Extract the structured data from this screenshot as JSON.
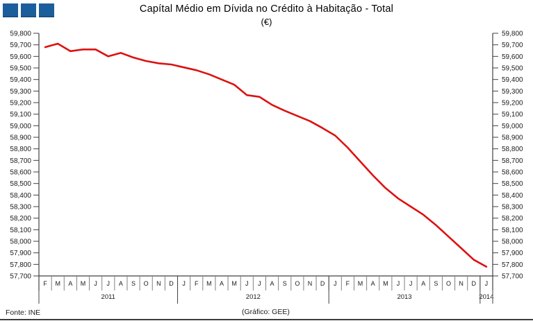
{
  "header": {
    "title": "Capítal Médio em Dívida no Crédito à Habitação - Total",
    "subtitle": "(€)"
  },
  "logo": {
    "squares": 3,
    "color": "#1b5e9b"
  },
  "footer": {
    "source": "Fonte: INE",
    "credit": "(Gráfico:  GEE)"
  },
  "chart_data": {
    "type": "line",
    "title": "Capítal Médio em Dívida no Crédito à Habitação - Total",
    "unit": "€",
    "grid": false,
    "legend": "none",
    "line_color": "#dd1111",
    "axis_color": "#404040",
    "cell_line_color": "#808080",
    "y": {
      "min": 57700,
      "max": 59800,
      "step": 100
    },
    "x": {
      "months": [
        "F",
        "M",
        "A",
        "M",
        "J",
        "J",
        "A",
        "S",
        "O",
        "N",
        "D",
        "J",
        "F",
        "M",
        "A",
        "M",
        "J",
        "J",
        "A",
        "S",
        "O",
        "N",
        "D",
        "J",
        "F",
        "M",
        "A",
        "M",
        "J",
        "J",
        "A",
        "S",
        "O",
        "N",
        "D",
        "J"
      ],
      "years": [
        {
          "label": "2011",
          "months": 11
        },
        {
          "label": "2012",
          "months": 12
        },
        {
          "label": "2013",
          "months": 12
        },
        {
          "label": "2014",
          "months": 1
        }
      ]
    },
    "series": [
      {
        "name": "Capital médio em dívida no crédito à habitação - Total",
        "values": [
          59680,
          59710,
          59645,
          59660,
          59660,
          59600,
          59630,
          59590,
          59560,
          59540,
          59530,
          59505,
          59480,
          59445,
          59400,
          59355,
          59265,
          59250,
          59180,
          59130,
          59085,
          59040,
          58980,
          58915,
          58810,
          58690,
          58570,
          58460,
          58370,
          58300,
          58230,
          58140,
          58040,
          57940,
          57840,
          57780
        ]
      }
    ]
  }
}
